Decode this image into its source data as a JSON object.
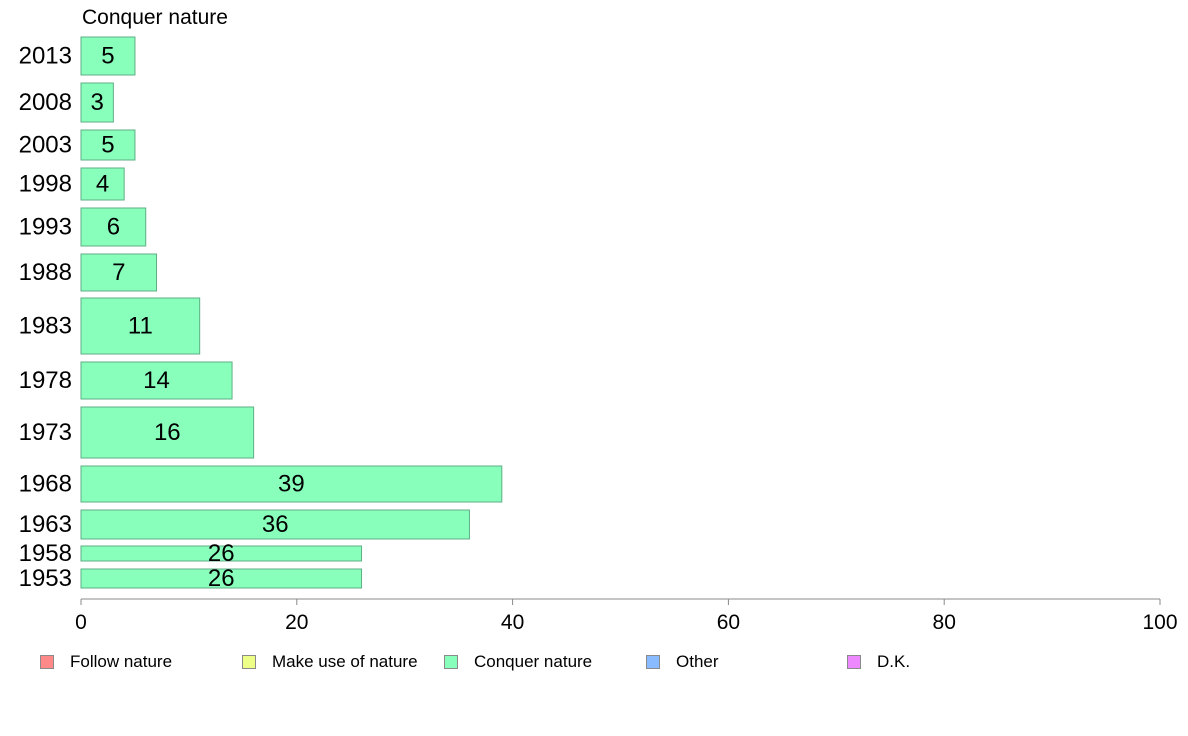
{
  "chart_data": {
    "type": "bar",
    "orientation": "horizontal",
    "title": "Conquer nature",
    "xlabel": "",
    "ylabel": "",
    "xlim": [
      0,
      100
    ],
    "x_ticks": [
      "0",
      "20",
      "40",
      "60",
      "80",
      "100"
    ],
    "grid": false,
    "categories": [
      "2013",
      "2008",
      "2003",
      "1998",
      "1993",
      "1988",
      "1983",
      "1978",
      "1973",
      "1968",
      "1963",
      "1958",
      "1953"
    ],
    "series": [
      {
        "name": "Conquer nature",
        "color": "#88ffbb",
        "values": [
          5,
          3,
          5,
          4,
          6,
          7,
          11,
          14,
          16,
          39,
          36,
          26,
          26
        ],
        "labels": [
          "5",
          "3",
          "5",
          "4",
          "6",
          "7",
          "11",
          "14",
          "16",
          "39",
          "36",
          "26",
          "26"
        ]
      }
    ],
    "legend": {
      "placement": "bottom",
      "entries": [
        {
          "label": "Follow nature",
          "color": "#ff8888"
        },
        {
          "label": "Make use of nature",
          "color": "#eeff88"
        },
        {
          "label": "Conquer nature",
          "color": "#88ffbb"
        },
        {
          "label": "Other",
          "color": "#88bbff"
        },
        {
          "label": "D.K.",
          "color": "#ee88ff"
        }
      ]
    }
  }
}
